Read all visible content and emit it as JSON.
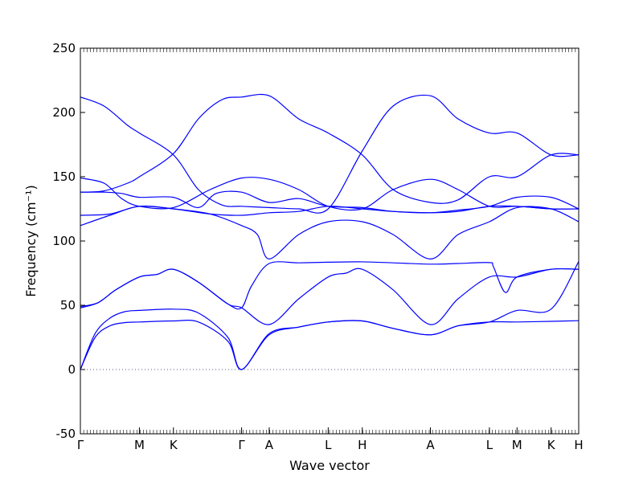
{
  "chart_data": {
    "type": "line",
    "title": "",
    "xlabel": "Wave vector",
    "ylabel": "Frequency (cm⁻¹)",
    "ylim": [
      -50,
      250
    ],
    "y_ticks": [
      -50,
      0,
      50,
      100,
      150,
      200,
      250
    ],
    "grid": false,
    "legend": "none",
    "line_color": "#0000ff",
    "zero_line_color": "#5a5a8a",
    "x_ticks": [
      {
        "label": "Γ",
        "x": 0.0
      },
      {
        "label": "M",
        "x": 1.0
      },
      {
        "label": "K",
        "x": 1.577
      },
      {
        "label": "Γ",
        "x": 2.732
      },
      {
        "label": "A",
        "x": 3.2
      },
      {
        "label": "L",
        "x": 4.2
      },
      {
        "label": "H",
        "x": 4.777
      },
      {
        "label": "A",
        "x": 5.932
      },
      {
        "label": "L",
        "x": 6.932
      },
      {
        "label": "M",
        "x": 7.4
      },
      {
        "label": "K",
        "x": 7.977
      },
      {
        "label": "H",
        "x": 8.445
      }
    ],
    "xlim": [
      0,
      8.445
    ],
    "series": [
      {
        "x": [
          0.0,
          0.25,
          0.5,
          0.75,
          1.0,
          1.577,
          2.0,
          2.5,
          2.732,
          3.2,
          3.7,
          4.2,
          4.777,
          5.3,
          5.932,
          6.4,
          6.932,
          7.4,
          7.977,
          8.445
        ],
        "values": [
          0,
          25,
          34,
          36.5,
          37,
          37.8,
          37,
          22,
          0,
          27,
          33,
          37,
          37.8,
          32,
          27,
          34,
          37,
          37,
          37.5,
          38
        ]
      },
      {
        "x": [
          0.0,
          0.25,
          0.5,
          0.75,
          1.0,
          1.577,
          2.0,
          2.5,
          2.732,
          3.2,
          3.7,
          4.2,
          4.777,
          5.3,
          5.932,
          6.4,
          6.932,
          7.4,
          7.977,
          8.445
        ],
        "values": [
          0,
          28,
          40,
          45,
          46,
          47,
          44,
          25,
          0,
          28,
          33,
          37,
          37.8,
          32,
          27,
          34,
          37,
          46,
          47,
          84
        ]
      },
      {
        "x": [
          0.0,
          0.3,
          0.6,
          1.0,
          1.3,
          1.577,
          2.0,
          2.5,
          2.732,
          3.2,
          3.7,
          4.2,
          4.5,
          4.777,
          5.3,
          5.932,
          6.4,
          6.932,
          7.4,
          7.977,
          8.445
        ],
        "values": [
          48,
          52,
          62,
          72,
          74,
          78,
          68,
          51,
          48,
          35,
          55,
          72,
          75,
          78,
          62,
          35,
          55,
          72,
          72,
          78,
          78
        ]
      },
      {
        "x": [
          0.0,
          0.3,
          0.6,
          1.0,
          1.3,
          1.577,
          2.0,
          2.5,
          2.732,
          2.9,
          3.2,
          3.7,
          4.2,
          4.777,
          5.3,
          5.932,
          6.4,
          6.932,
          7.0,
          7.2,
          7.4,
          7.977,
          8.445
        ],
        "values": [
          49,
          52,
          62,
          72,
          74,
          78,
          68,
          51,
          48,
          65,
          82.5,
          83,
          83.5,
          83.8,
          83,
          82,
          82.5,
          83.2,
          80,
          60,
          72,
          78,
          78
        ]
      },
      {
        "x": [
          0.0,
          0.5,
          1.0,
          1.577,
          2.2,
          2.732,
          3.0,
          3.2,
          3.7,
          4.2,
          4.777,
          5.3,
          5.932,
          6.4,
          6.932,
          7.4,
          7.977,
          8.445
        ],
        "values": [
          112,
          120,
          127,
          125,
          121,
          112,
          105,
          86,
          105,
          115,
          115,
          105,
          86,
          105,
          115,
          126,
          125,
          115
        ]
      },
      {
        "x": [
          0.0,
          0.5,
          1.0,
          1.577,
          2.2,
          2.732,
          3.2,
          3.7,
          4.2,
          4.777,
          5.3,
          5.932,
          6.4,
          6.932,
          7.4,
          7.977,
          8.445
        ],
        "values": [
          120,
          121,
          127,
          125,
          121,
          120,
          122,
          123,
          127,
          125,
          123,
          122,
          123,
          127,
          127,
          125,
          125
        ]
      },
      {
        "x": [
          0.0,
          0.4,
          0.7,
          1.0,
          1.577,
          2.0,
          2.3,
          2.732,
          3.2,
          3.7,
          4.2,
          4.777,
          5.3,
          5.932,
          6.4,
          6.932,
          7.4,
          7.977,
          8.445
        ],
        "values": [
          138,
          138,
          137,
          134,
          134,
          126,
          137,
          138,
          130,
          133,
          127,
          126,
          123,
          122,
          124,
          127,
          134,
          134,
          125
        ]
      },
      {
        "x": [
          0.0,
          0.4,
          0.7,
          1.0,
          1.577,
          2.2,
          2.732,
          3.2,
          3.7,
          4.2,
          4.777,
          5.3,
          5.932,
          6.4,
          6.932,
          7.4,
          7.977,
          8.445
        ],
        "values": [
          149,
          145,
          133,
          127,
          126,
          140,
          149,
          148,
          140,
          127,
          125,
          140,
          148,
          140,
          127,
          127,
          125,
          125
        ]
      },
      {
        "x": [
          0.0,
          0.4,
          0.8,
          1.0,
          1.577,
          2.0,
          2.4,
          2.732,
          3.2,
          3.7,
          4.2,
          4.777,
          5.3,
          5.932,
          6.4,
          6.932,
          7.4,
          7.977,
          8.445
        ],
        "values": [
          212,
          205,
          190,
          184,
          167,
          140,
          128,
          127,
          126,
          125,
          125,
          170,
          205,
          213,
          195,
          184,
          184,
          167,
          167
        ]
      },
      {
        "x": [
          0.0,
          0.4,
          0.8,
          1.0,
          1.577,
          2.0,
          2.4,
          2.732,
          3.2,
          3.7,
          4.2,
          4.777,
          5.3,
          5.932,
          6.4,
          6.932,
          7.4,
          7.977,
          8.445
        ],
        "values": [
          138,
          139,
          145,
          150,
          168,
          195,
          210,
          212,
          213,
          195,
          184,
          167,
          140,
          130,
          132,
          150,
          150,
          167,
          167
        ]
      }
    ]
  }
}
